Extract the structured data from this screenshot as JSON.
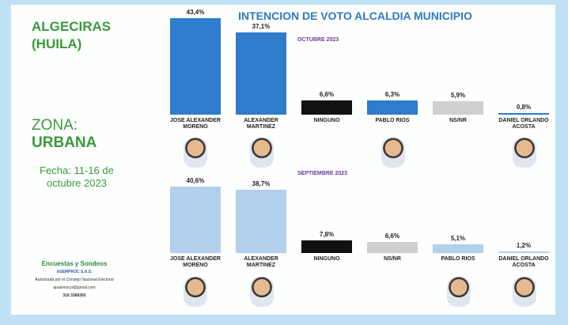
{
  "sidebar": {
    "place": "ALGECIRAS",
    "region": "(HUILA)",
    "zone_label": "ZONA:",
    "zone": "URBANA",
    "date": "Fecha: 11-16 de octubre 2023",
    "pollster": "Encuestas y Sondeos",
    "company": "ASEMPROC S.A.S.",
    "authorization": "Autorizada por el Consejo Nacional Electoral",
    "email": "apalomocol@gmail.com",
    "phone": "316 3388365"
  },
  "title": "INTENCION DE VOTO ALCALDIA MUNICIPIO",
  "chart_data": [
    {
      "type": "bar",
      "subtitle": "OCTUBRE 2023",
      "categories": [
        "JOSE ALEXANDER MORENO",
        "ALEXANDER MARTINEZ",
        "NINGUNO",
        "PABLO RIOS",
        "NS/NR",
        "DANIEL ORLANDO ACOSTA"
      ],
      "values": [
        43.4,
        37.1,
        6.6,
        6.3,
        5.9,
        0.8
      ],
      "value_labels": [
        "43,4%",
        "37,1%",
        "6,6%",
        "6,3%",
        "5,9%",
        "0,8%"
      ],
      "colors": [
        "#2f7bcc",
        "#2f7bcc",
        "#111111",
        "#2f7bcc",
        "#cfcfcf",
        "#2f7bcc"
      ]
    },
    {
      "type": "bar",
      "subtitle": "SEPTIEMBRE 2023",
      "categories": [
        "JOSE ALEXANDER MORENO",
        "ALEXANDER MARTINEZ",
        "NINGUNO",
        "NS/NR",
        "PABLO RIOS",
        "DANIEL ORLANDO ACOSTA"
      ],
      "values": [
        40.6,
        38.7,
        7.8,
        6.6,
        5.1,
        1.2
      ],
      "value_labels": [
        "40,6%",
        "38,7%",
        "7,8%",
        "6,6%",
        "5,1%",
        "1,2%"
      ],
      "colors": [
        "#b3cfee",
        "#b3cfee",
        "#111111",
        "#cfcfcf",
        "#b3cfee",
        "#b3cfee"
      ]
    }
  ]
}
